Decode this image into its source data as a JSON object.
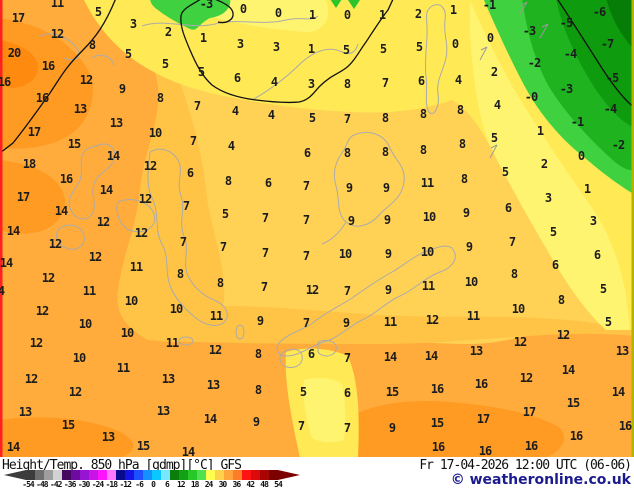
{
  "legend": {
    "title": "Height/Temp. 850 hPa [gdmp][°C] GFS",
    "datetime": "Fr 17-04-2026 12:00 UTC (06-06)",
    "copyright": "© weatheronline.co.uk",
    "colorbar": {
      "ticks": [
        "-54",
        "-48",
        "-42",
        "-36",
        "-30",
        "-24",
        "-18",
        "-12",
        "-6",
        "0",
        "6",
        "12",
        "18",
        "24",
        "30",
        "36",
        "42",
        "48",
        "54"
      ],
      "segments": [
        "#3c3c3c",
        "#6e6e6e",
        "#9e9e9e",
        "#d2d2d2",
        "#46075f",
        "#6e0aa0",
        "#9614d2",
        "#c814e6",
        "#ff14ff",
        "#ff78ff",
        "#0a0a8c",
        "#1414e6",
        "#1e50ff",
        "#1490ff",
        "#0ac8ff",
        "#78e6ff",
        "#0a7d0a",
        "#14a014",
        "#28c828",
        "#50e150",
        "#ffff50",
        "#ffd24b",
        "#ffa53c",
        "#ff7d28",
        "#ff1414",
        "#dc0a0a",
        "#aa0505",
        "#7d0000"
      ]
    }
  },
  "colors": {
    "grid_label": "#1c1c1c",
    "caption_text": "#101010",
    "copyright_text": "#1b1b8f",
    "border_left": "#ff2121",
    "border_right": "#b5b500",
    "field_gold": "#FFD155",
    "field_orange": "#FFAC3C",
    "field_yellow": "#FFE955",
    "field_green_light": "#3FD13F",
    "field_green_dark": "#0E9B0E"
  },
  "map": {
    "parameter": "850 hPa temperature (°C) grid values",
    "grid_values": [
      [
        "17",
        18,
        18
      ],
      [
        "11",
        57,
        3
      ],
      [
        "5",
        98,
        12
      ],
      [
        "-3",
        206,
        4
      ],
      [
        "0",
        243,
        9
      ],
      [
        "0",
        278,
        13
      ],
      [
        "1",
        312,
        15
      ],
      [
        "0",
        347,
        15
      ],
      [
        "1",
        382,
        15
      ],
      [
        "2",
        418,
        14
      ],
      [
        "1",
        453,
        10
      ],
      [
        "-1",
        489,
        5
      ],
      [
        "-6",
        599,
        12
      ],
      [
        "12",
        57,
        34
      ],
      [
        "3",
        133,
        24
      ],
      [
        "2",
        168,
        32
      ],
      [
        "1",
        203,
        38
      ],
      [
        "3",
        240,
        44
      ],
      [
        "3",
        276,
        47
      ],
      [
        "1",
        311,
        49
      ],
      [
        "5",
        346,
        50
      ],
      [
        "5",
        383,
        49
      ],
      [
        "5",
        419,
        47
      ],
      [
        "0",
        455,
        44
      ],
      [
        "0",
        490,
        38
      ],
      [
        "-3",
        529,
        31
      ],
      [
        "-5",
        566,
        23
      ],
      [
        "-7",
        607,
        44
      ],
      [
        "20",
        14,
        53
      ],
      [
        "8",
        92,
        45
      ],
      [
        "5",
        128,
        54
      ],
      [
        "16",
        48,
        66
      ],
      [
        "5",
        165,
        64
      ],
      [
        "5",
        201,
        72
      ],
      [
        "6",
        237,
        78
      ],
      [
        "4",
        274,
        82
      ],
      [
        "3",
        311,
        84
      ],
      [
        "8",
        347,
        84
      ],
      [
        "7",
        385,
        83
      ],
      [
        "6",
        421,
        81
      ],
      [
        "4",
        458,
        80
      ],
      [
        "2",
        494,
        72
      ],
      [
        "-2",
        534,
        63
      ],
      [
        "-4",
        570,
        54
      ],
      [
        "-5",
        612,
        78
      ],
      [
        "-3",
        566,
        89
      ],
      [
        "16",
        4,
        82
      ],
      [
        "12",
        86,
        80
      ],
      [
        "9",
        122,
        89
      ],
      [
        "16",
        42,
        98
      ],
      [
        "13",
        80,
        109
      ],
      [
        "8",
        160,
        98
      ],
      [
        "7",
        197,
        106
      ],
      [
        "4",
        235,
        111
      ],
      [
        "4",
        271,
        115
      ],
      [
        "5",
        312,
        118
      ],
      [
        "7",
        347,
        119
      ],
      [
        "8",
        385,
        118
      ],
      [
        "8",
        423,
        114
      ],
      [
        "8",
        460,
        110
      ],
      [
        "4",
        497,
        105
      ],
      [
        "-0",
        531,
        97
      ],
      [
        "-4",
        610,
        109
      ],
      [
        "-1",
        577,
        122
      ],
      [
        "17",
        34,
        132
      ],
      [
        "13",
        116,
        123
      ],
      [
        "15",
        74,
        144
      ],
      [
        "10",
        155,
        133
      ],
      [
        "14",
        113,
        156
      ],
      [
        "7",
        193,
        141
      ],
      [
        "4",
        231,
        146
      ],
      [
        "1",
        540,
        131
      ],
      [
        "5",
        494,
        138
      ],
      [
        "-2",
        618,
        145
      ],
      [
        "0",
        581,
        156
      ],
      [
        "6",
        307,
        153
      ],
      [
        "8",
        347,
        153
      ],
      [
        "8",
        385,
        152
      ],
      [
        "8",
        423,
        150
      ],
      [
        "8",
        462,
        144
      ],
      [
        "18",
        29,
        164
      ],
      [
        "12",
        150,
        166
      ],
      [
        "6",
        190,
        173
      ],
      [
        "2",
        544,
        164
      ],
      [
        "16",
        66,
        179
      ],
      [
        "14",
        106,
        190
      ],
      [
        "8",
        228,
        181
      ],
      [
        "6",
        268,
        183
      ],
      [
        "7",
        306,
        186
      ],
      [
        "9",
        349,
        188
      ],
      [
        "9",
        386,
        188
      ],
      [
        "11",
        427,
        183
      ],
      [
        "8",
        464,
        179
      ],
      [
        "5",
        505,
        172
      ],
      [
        "1",
        587,
        189
      ],
      [
        "3",
        548,
        198
      ],
      [
        "17",
        23,
        197
      ],
      [
        "14",
        61,
        211
      ],
      [
        "12",
        145,
        199
      ],
      [
        "7",
        186,
        206
      ],
      [
        "5",
        225,
        214
      ],
      [
        "7",
        265,
        218
      ],
      [
        "7",
        306,
        220
      ],
      [
        "9",
        351,
        221
      ],
      [
        "9",
        387,
        220
      ],
      [
        "10",
        429,
        217
      ],
      [
        "9",
        466,
        213
      ],
      [
        "6",
        508,
        208
      ],
      [
        "3",
        593,
        221
      ],
      [
        "5",
        553,
        232
      ],
      [
        "14",
        13,
        231
      ],
      [
        "12",
        103,
        222
      ],
      [
        "12",
        141,
        233
      ],
      [
        "14",
        6,
        263
      ],
      [
        "12",
        55,
        244
      ],
      [
        "12",
        95,
        257
      ],
      [
        "11",
        136,
        267
      ],
      [
        "8",
        180,
        274
      ],
      [
        "7",
        183,
        242
      ],
      [
        "7",
        223,
        247
      ],
      [
        "7",
        265,
        253
      ],
      [
        "7",
        306,
        256
      ],
      [
        "10",
        345,
        254
      ],
      [
        "9",
        388,
        254
      ],
      [
        "10",
        427,
        252
      ],
      [
        "9",
        469,
        247
      ],
      [
        "7",
        512,
        242
      ],
      [
        "6",
        555,
        265
      ],
      [
        "6",
        597,
        255
      ],
      [
        "12",
        48,
        278
      ],
      [
        "11",
        89,
        291
      ],
      [
        "10",
        131,
        301
      ],
      [
        "10",
        176,
        309
      ],
      [
        "8",
        220,
        283
      ],
      [
        "7",
        264,
        287
      ],
      [
        "12",
        312,
        290
      ],
      [
        "7",
        347,
        291
      ],
      [
        "9",
        388,
        290
      ],
      [
        "11",
        428,
        286
      ],
      [
        "10",
        471,
        282
      ],
      [
        "8",
        514,
        274
      ],
      [
        "5",
        603,
        289
      ],
      [
        "4",
        1,
        291
      ],
      [
        "12",
        42,
        311
      ],
      [
        "10",
        85,
        324
      ],
      [
        "10",
        127,
        333
      ],
      [
        "11",
        216,
        316
      ],
      [
        "9",
        260,
        321
      ],
      [
        "7",
        306,
        323
      ],
      [
        "9",
        346,
        323
      ],
      [
        "11",
        390,
        322
      ],
      [
        "12",
        432,
        320
      ],
      [
        "11",
        473,
        316
      ],
      [
        "10",
        518,
        309
      ],
      [
        "8",
        561,
        300
      ],
      [
        "5",
        608,
        322
      ],
      [
        "12",
        36,
        343
      ],
      [
        "10",
        79,
        358
      ],
      [
        "11",
        172,
        343
      ],
      [
        "12",
        215,
        350
      ],
      [
        "8",
        258,
        354
      ],
      [
        "6",
        311,
        354
      ],
      [
        "7",
        347,
        358
      ],
      [
        "14",
        390,
        357
      ],
      [
        "14",
        431,
        356
      ],
      [
        "13",
        476,
        351
      ],
      [
        "12",
        520,
        342
      ],
      [
        "12",
        563,
        335
      ],
      [
        "13",
        622,
        351
      ],
      [
        "12",
        31,
        379
      ],
      [
        "12",
        75,
        392
      ],
      [
        "11",
        123,
        368
      ],
      [
        "13",
        168,
        379
      ],
      [
        "13",
        213,
        385
      ],
      [
        "8",
        258,
        390
      ],
      [
        "5",
        303,
        392
      ],
      [
        "6",
        347,
        393
      ],
      [
        "15",
        392,
        392
      ],
      [
        "16",
        437,
        389
      ],
      [
        "16",
        481,
        384
      ],
      [
        "12",
        526,
        378
      ],
      [
        "14",
        568,
        370
      ],
      [
        "14",
        618,
        392
      ],
      [
        "13",
        25,
        412
      ],
      [
        "13",
        163,
        411
      ],
      [
        "14",
        210,
        419
      ],
      [
        "9",
        256,
        422
      ],
      [
        "7",
        301,
        426
      ],
      [
        "7",
        347,
        428
      ],
      [
        "9",
        392,
        428
      ],
      [
        "15",
        437,
        423
      ],
      [
        "17",
        483,
        419
      ],
      [
        "17",
        529,
        412
      ],
      [
        "15",
        573,
        403
      ],
      [
        "15",
        68,
        425
      ],
      [
        "13",
        108,
        437
      ],
      [
        "16",
        576,
        436
      ],
      [
        "16",
        625,
        426
      ],
      [
        "14",
        13,
        447
      ],
      [
        "15",
        143,
        446
      ],
      [
        "14",
        188,
        452
      ],
      [
        "16",
        438,
        447
      ],
      [
        "16",
        485,
        451
      ],
      [
        "16",
        531,
        446
      ]
    ]
  }
}
